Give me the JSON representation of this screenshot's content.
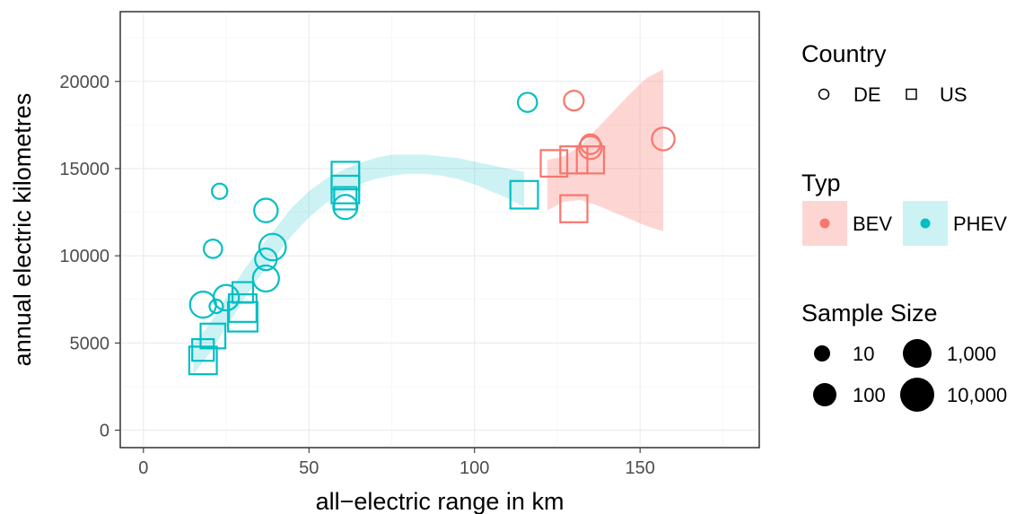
{
  "chart_data": {
    "type": "scatter",
    "xlabel": "all−electric range in km",
    "ylabel": "annual electric kilometres",
    "xlim": [
      -7,
      186
    ],
    "ylim": [
      -1000,
      24000
    ],
    "x_ticks": [
      0,
      50,
      100,
      150
    ],
    "x_tick_labels": [
      "0",
      "50",
      "100",
      "150"
    ],
    "y_ticks": [
      0,
      5000,
      10000,
      15000,
      20000
    ],
    "y_tick_labels": [
      "0",
      "5000",
      "10000",
      "15000",
      "20000"
    ],
    "grid": true,
    "legend_position": "right",
    "colors": {
      "BEV": "#f8766d",
      "PHEV": "#00bfc4"
    },
    "legends": {
      "country": {
        "title": "Country",
        "items": [
          {
            "label": "DE",
            "shape": "circle"
          },
          {
            "label": "US",
            "shape": "square"
          }
        ]
      },
      "typ": {
        "title": "Typ",
        "items": [
          {
            "label": "BEV",
            "key": "BEV"
          },
          {
            "label": "PHEV",
            "key": "PHEV"
          }
        ]
      },
      "sample_size": {
        "title": "Sample Size",
        "items": [
          {
            "label": "10",
            "n": 10
          },
          {
            "label": "100",
            "n": 100
          },
          {
            "label": "1,000",
            "n": 1000
          },
          {
            "label": "10,000",
            "n": 10000
          }
        ]
      }
    },
    "series": [
      {
        "name": "PHEV",
        "points": [
          {
            "x": 18,
            "y": 4000,
            "country": "US",
            "n": 3000
          },
          {
            "x": 18,
            "y": 4600,
            "country": "US",
            "n": 300
          },
          {
            "x": 21,
            "y": 5400,
            "country": "US",
            "n": 1000
          },
          {
            "x": 18,
            "y": 7200,
            "country": "DE",
            "n": 1000
          },
          {
            "x": 22,
            "y": 7100,
            "country": "DE",
            "n": 10
          },
          {
            "x": 25,
            "y": 7600,
            "country": "DE",
            "n": 800
          },
          {
            "x": 30,
            "y": 6500,
            "country": "US",
            "n": 6000
          },
          {
            "x": 30,
            "y": 7000,
            "country": "US",
            "n": 3000
          },
          {
            "x": 30,
            "y": 7900,
            "country": "US",
            "n": 200
          },
          {
            "x": 21,
            "y": 10400,
            "country": "DE",
            "n": 60
          },
          {
            "x": 23,
            "y": 13700,
            "country": "DE",
            "n": 20
          },
          {
            "x": 37,
            "y": 8700,
            "country": "DE",
            "n": 1000
          },
          {
            "x": 37,
            "y": 9800,
            "country": "DE",
            "n": 200
          },
          {
            "x": 39,
            "y": 10500,
            "country": "DE",
            "n": 1200
          },
          {
            "x": 37,
            "y": 12600,
            "country": "DE",
            "n": 400
          },
          {
            "x": 61,
            "y": 14600,
            "country": "US",
            "n": 3000
          },
          {
            "x": 61,
            "y": 13800,
            "country": "US",
            "n": 3000
          },
          {
            "x": 61,
            "y": 13300,
            "country": "US",
            "n": 400
          },
          {
            "x": 61,
            "y": 12800,
            "country": "DE",
            "n": 500
          },
          {
            "x": 115,
            "y": 13500,
            "country": "US",
            "n": 3000
          },
          {
            "x": 116,
            "y": 18800,
            "country": "DE",
            "n": 80
          }
        ]
      },
      {
        "name": "BEV",
        "points": [
          {
            "x": 124,
            "y": 15300,
            "country": "US",
            "n": 2000
          },
          {
            "x": 130,
            "y": 15500,
            "country": "US",
            "n": 2500
          },
          {
            "x": 130,
            "y": 12700,
            "country": "US",
            "n": 2500
          },
          {
            "x": 130,
            "y": 18900,
            "country": "DE",
            "n": 100
          },
          {
            "x": 135,
            "y": 15500,
            "country": "US",
            "n": 2500
          },
          {
            "x": 135,
            "y": 16400,
            "country": "DE",
            "n": 100
          },
          {
            "x": 135,
            "y": 16200,
            "country": "DE",
            "n": 300
          },
          {
            "x": 157,
            "y": 16700,
            "country": "DE",
            "n": 300
          }
        ]
      }
    ],
    "confidence_bands": [
      {
        "name": "PHEV",
        "points": [
          {
            "x": 15,
            "lo": 3200,
            "hi": 4900
          },
          {
            "x": 20,
            "lo": 4400,
            "hi": 6100
          },
          {
            "x": 25,
            "lo": 5900,
            "hi": 7600
          },
          {
            "x": 30,
            "lo": 7400,
            "hi": 9100
          },
          {
            "x": 35,
            "lo": 8800,
            "hi": 10400
          },
          {
            "x": 40,
            "lo": 10000,
            "hi": 11600
          },
          {
            "x": 45,
            "lo": 11200,
            "hi": 12800
          },
          {
            "x": 50,
            "lo": 12200,
            "hi": 13700
          },
          {
            "x": 55,
            "lo": 13000,
            "hi": 14400
          },
          {
            "x": 60,
            "lo": 13600,
            "hi": 14900
          },
          {
            "x": 65,
            "lo": 14100,
            "hi": 15300
          },
          {
            "x": 70,
            "lo": 14400,
            "hi": 15600
          },
          {
            "x": 75,
            "lo": 14600,
            "hi": 15800
          },
          {
            "x": 80,
            "lo": 14700,
            "hi": 15800
          },
          {
            "x": 85,
            "lo": 14700,
            "hi": 15800
          },
          {
            "x": 90,
            "lo": 14600,
            "hi": 15700
          },
          {
            "x": 95,
            "lo": 14400,
            "hi": 15600
          },
          {
            "x": 100,
            "lo": 14100,
            "hi": 15400
          },
          {
            "x": 105,
            "lo": 13700,
            "hi": 15200
          },
          {
            "x": 110,
            "lo": 13300,
            "hi": 15000
          },
          {
            "x": 115,
            "lo": 12800,
            "hi": 14800
          }
        ]
      },
      {
        "name": "BEV",
        "points": [
          {
            "x": 122,
            "lo": 12600,
            "hi": 15500
          },
          {
            "x": 127,
            "lo": 13100,
            "hi": 15700
          },
          {
            "x": 132,
            "lo": 13200,
            "hi": 16300
          },
          {
            "x": 137,
            "lo": 12900,
            "hi": 17300
          },
          {
            "x": 142,
            "lo": 12500,
            "hi": 18300
          },
          {
            "x": 147,
            "lo": 12100,
            "hi": 19300
          },
          {
            "x": 152,
            "lo": 11700,
            "hi": 20200
          },
          {
            "x": 157,
            "lo": 11400,
            "hi": 20700
          }
        ]
      }
    ]
  }
}
